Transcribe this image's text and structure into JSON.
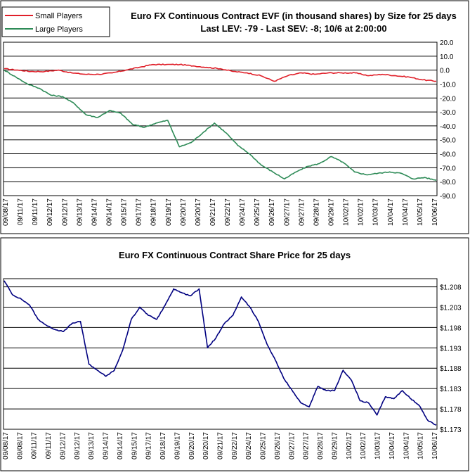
{
  "chart_data": [
    {
      "type": "line",
      "title": "Euro FX Continuous Contract EVF (in thousand shares) by Size for 25 days",
      "subtitle": "Last LEV: -79 - Last SEV: -8; 10/6 at 2:00:00",
      "x_tick_labels": [
        "09/08/17",
        "09/11/17",
        "09/11/17",
        "09/12/17",
        "09/12/17",
        "09/13/17",
        "09/14/17",
        "09/14/17",
        "09/15/17",
        "09/17/17",
        "09/18/17",
        "09/19/17",
        "09/20/17",
        "09/20/17",
        "09/21/17",
        "09/22/17",
        "09/24/17",
        "09/25/17",
        "09/26/17",
        "09/27/17",
        "09/27/17",
        "09/28/17",
        "09/29/17",
        "10/02/17",
        "10/02/17",
        "10/03/17",
        "10/04/17",
        "10/04/17",
        "10/05/17",
        "10/06/17"
      ],
      "y_ticks": [
        "20.0",
        "10.0",
        "0.0",
        "-10.0",
        "-20.0",
        "-30.0",
        "-40.0",
        "-50.0",
        "-60.0",
        "-70.0",
        "-80.0",
        "-90.0"
      ],
      "ylim": [
        -90,
        20
      ],
      "grid": true,
      "legend_position": "top-left",
      "series": [
        {
          "name": "Small Players",
          "color": "#e0202a",
          "values": [
            1,
            0,
            -1,
            -1,
            0,
            -2,
            -3,
            -3,
            -2,
            0,
            2,
            4,
            4,
            4,
            3,
            2,
            1,
            -1,
            -2,
            -4,
            -8,
            -4,
            -2,
            -3,
            -2,
            -2,
            -2,
            -4,
            -3,
            -4,
            -5,
            -7,
            -8
          ]
        },
        {
          "name": "Large Players",
          "color": "#2e8b57",
          "values": [
            0,
            -5,
            -10,
            -13,
            -18,
            -19,
            -24,
            -32,
            -34,
            -29,
            -31,
            -39,
            -41,
            -38,
            -36,
            -55,
            -52,
            -45,
            -38,
            -45,
            -54,
            -60,
            -68,
            -73,
            -78,
            -73,
            -69,
            -67,
            -62,
            -66,
            -73,
            -75,
            -74,
            -73,
            -74,
            -78,
            -77,
            -79
          ]
        }
      ]
    },
    {
      "type": "line",
      "title": "Euro FX Continuous Contract Share Price for 25 days",
      "x_tick_labels": [
        "09/08/17",
        "09/08/17",
        "09/11/17",
        "09/11/17",
        "09/12/17",
        "09/12/17",
        "09/13/17",
        "09/14/17",
        "09/14/17",
        "09/15/17",
        "09/17/17",
        "09/18/17",
        "09/19/17",
        "09/20/17",
        "09/20/17",
        "09/21/17",
        "09/22/17",
        "09/24/17",
        "09/25/17",
        "09/26/17",
        "09/27/17",
        "09/27/17",
        "09/28/17",
        "09/29/17",
        "10/02/17",
        "10/02/17",
        "10/03/17",
        "10/04/17",
        "10/04/17",
        "10/05/17",
        "10/06/17"
      ],
      "y_ticks": [
        "$1.208",
        "$1.203",
        "$1.198",
        "$1.193",
        "$1.188",
        "$1.183",
        "$1.178",
        "$1.173"
      ],
      "ylim": [
        1.173,
        1.21
      ],
      "grid": true,
      "series": [
        {
          "color": "#000080",
          "values": [
            1.2095,
            1.206,
            1.205,
            1.2035,
            1.2,
            1.1985,
            1.1975,
            1.197,
            1.199,
            1.1995,
            1.189,
            1.1875,
            1.186,
            1.1875,
            1.1925,
            1.2,
            1.203,
            1.201,
            1.2,
            1.2035,
            1.2075,
            1.2065,
            1.2058,
            1.2075,
            1.193,
            1.1955,
            1.199,
            1.201,
            1.2055,
            1.203,
            1.1995,
            1.194,
            1.19,
            1.1855,
            1.1825,
            1.1795,
            1.1785,
            1.1835,
            1.1825,
            1.1825,
            1.1875,
            1.185,
            1.18,
            1.1795,
            1.1765,
            1.181,
            1.1805,
            1.1825,
            1.1805,
            1.1788,
            1.1752,
            1.174
          ]
        }
      ]
    }
  ]
}
